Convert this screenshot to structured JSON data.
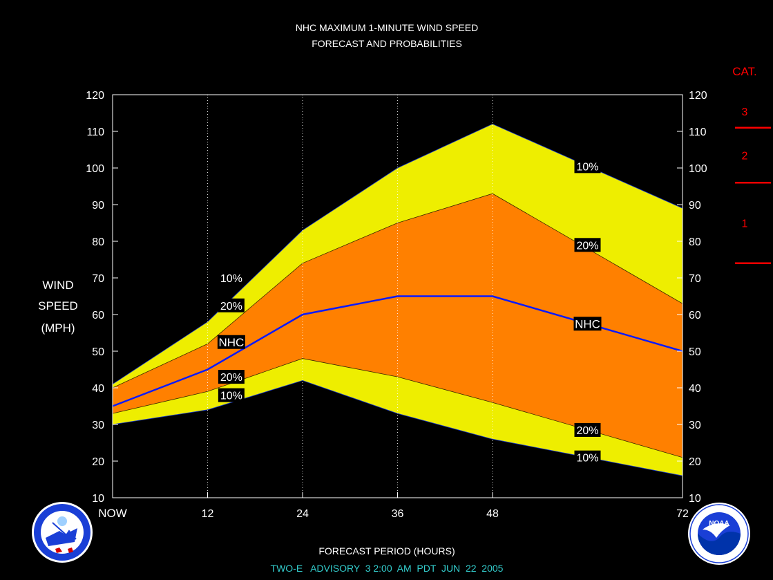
{
  "chart_data": {
    "type": "area",
    "title": "NHC MAXIMUM 1-MINUTE WIND SPEED",
    "subtitle": "FORECAST AND PROBABILITIES",
    "ylabel_lines": [
      "WIND",
      "SPEED",
      "(MPH)"
    ],
    "xlabel": "FORECAST PERIOD (HOURS)",
    "footer": "TWO-E   ADVISORY  3 2:00  AM  PDT  JUN  22  2005",
    "xlim": [
      0,
      72
    ],
    "ylim": [
      10,
      120
    ],
    "y_ticks": [
      10,
      20,
      30,
      40,
      50,
      60,
      70,
      80,
      90,
      100,
      110,
      120
    ],
    "x_ticks": [
      {
        "value": 0,
        "label": "NOW"
      },
      {
        "value": 12,
        "label": "12"
      },
      {
        "value": 24,
        "label": "24"
      },
      {
        "value": 36,
        "label": "36"
      },
      {
        "value": 48,
        "label": "48"
      },
      {
        "value": 72,
        "label": "72"
      }
    ],
    "x": [
      0,
      12,
      24,
      36,
      48,
      72
    ],
    "bands": {
      "upper_10": [
        41,
        58,
        83,
        100,
        112,
        89
      ],
      "upper_20": [
        40,
        52,
        74,
        85,
        93,
        63
      ],
      "lower_20": [
        33,
        39,
        48,
        43,
        36,
        21
      ],
      "lower_10": [
        30,
        34,
        42,
        33,
        26,
        16
      ]
    },
    "nhc": [
      35,
      45,
      60,
      65,
      65,
      50
    ],
    "band_labels": [
      {
        "text": "10%",
        "x": 15,
        "y": 70
      },
      {
        "text": "20%",
        "x": 15,
        "y": 62.5
      },
      {
        "text": "NHC",
        "x": 15,
        "y": 52.5
      },
      {
        "text": "20%",
        "x": 15,
        "y": 43
      },
      {
        "text": "10%",
        "x": 15,
        "y": 38
      },
      {
        "text": "10%",
        "x": 60,
        "y": 100.5
      },
      {
        "text": "20%",
        "x": 60,
        "y": 79
      },
      {
        "text": "NHC",
        "x": 60,
        "y": 57.5
      },
      {
        "text": "20%",
        "x": 60,
        "y": 28.5
      },
      {
        "text": "10%",
        "x": 60,
        "y": 21
      }
    ],
    "categories_legend": {
      "title": "CAT.",
      "entries": [
        {
          "label": "3",
          "threshold": 111
        },
        {
          "label": "2",
          "threshold": 96
        },
        {
          "label": "1",
          "threshold": 74
        }
      ]
    },
    "colors": {
      "outer_band": "#eeee00",
      "inner_band": "#ff8000",
      "nhc_line": "#0a1aff",
      "legend": "#ff0000",
      "footer": "#33cccc"
    }
  },
  "logos": {
    "left": "NATIONAL WEATHER SERVICE",
    "right": "NOAA"
  }
}
